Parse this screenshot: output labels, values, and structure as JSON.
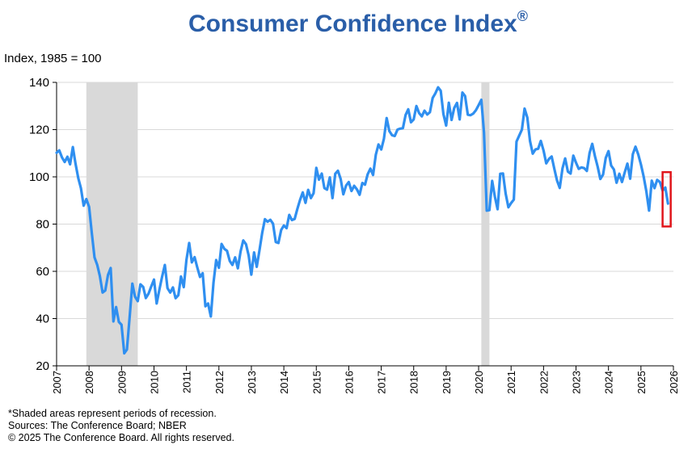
{
  "title": "Consumer Confidence Index",
  "title_mark": "®",
  "chart_data": {
    "type": "line",
    "ylabel": "Index, 1985 = 100",
    "xlabel": "",
    "ylim": [
      20,
      140
    ],
    "yticks": [
      20,
      40,
      60,
      80,
      100,
      120,
      140
    ],
    "xlim": [
      2007,
      2026
    ],
    "xticks": [
      "2007",
      "2008",
      "2009",
      "2010",
      "2011",
      "2012",
      "2013",
      "2014",
      "2015",
      "2016",
      "2017",
      "2018",
      "2019",
      "2020",
      "2021",
      "2022",
      "2023",
      "2024",
      "2025",
      "2026"
    ],
    "grid": "horizontal",
    "line_color": "#2f8ff0",
    "recession_color": "#d9d9d9",
    "highlight_color": "#e0151b",
    "recessions": [
      {
        "start": "2007-12",
        "end": "2009-06"
      },
      {
        "start": "2020-02",
        "end": "2020-04"
      }
    ],
    "highlight": {
      "start": "2025-09",
      "end": "2025-12",
      "ymin": 79,
      "ymax": 102
    },
    "series": [
      {
        "values": [
          [
            "2007-01",
            110.2
          ],
          [
            "2007-02",
            111.2
          ],
          [
            "2007-03",
            108.2
          ],
          [
            "2007-04",
            106.3
          ],
          [
            "2007-05",
            108.5
          ],
          [
            "2007-06",
            105.3
          ],
          [
            "2007-07",
            112.6
          ],
          [
            "2007-08",
            105.6
          ],
          [
            "2007-09",
            99.5
          ],
          [
            "2007-10",
            95.2
          ],
          [
            "2007-11",
            87.8
          ],
          [
            "2007-12",
            90.6
          ],
          [
            "2008-01",
            87.3
          ],
          [
            "2008-02",
            76.4
          ],
          [
            "2008-03",
            65.9
          ],
          [
            "2008-04",
            62.8
          ],
          [
            "2008-05",
            58.1
          ],
          [
            "2008-06",
            51.0
          ],
          [
            "2008-07",
            51.9
          ],
          [
            "2008-08",
            58.5
          ],
          [
            "2008-09",
            61.4
          ],
          [
            "2008-10",
            38.8
          ],
          [
            "2008-11",
            44.9
          ],
          [
            "2008-12",
            38.6
          ],
          [
            "2009-01",
            37.4
          ],
          [
            "2009-02",
            25.3
          ],
          [
            "2009-03",
            26.9
          ],
          [
            "2009-04",
            40.8
          ],
          [
            "2009-05",
            54.8
          ],
          [
            "2009-06",
            49.3
          ],
          [
            "2009-07",
            47.4
          ],
          [
            "2009-08",
            54.5
          ],
          [
            "2009-09",
            53.4
          ],
          [
            "2009-10",
            48.7
          ],
          [
            "2009-11",
            50.6
          ],
          [
            "2009-12",
            53.6
          ],
          [
            "2010-01",
            56.5
          ],
          [
            "2010-02",
            46.4
          ],
          [
            "2010-03",
            52.3
          ],
          [
            "2010-04",
            57.7
          ],
          [
            "2010-05",
            62.7
          ],
          [
            "2010-06",
            52.9
          ],
          [
            "2010-07",
            51.0
          ],
          [
            "2010-08",
            53.2
          ],
          [
            "2010-09",
            48.6
          ],
          [
            "2010-10",
            49.9
          ],
          [
            "2010-11",
            57.8
          ],
          [
            "2010-12",
            53.3
          ],
          [
            "2011-01",
            64.8
          ],
          [
            "2011-02",
            72.0
          ],
          [
            "2011-03",
            63.8
          ],
          [
            "2011-04",
            66.0
          ],
          [
            "2011-05",
            61.7
          ],
          [
            "2011-06",
            57.6
          ],
          [
            "2011-07",
            59.2
          ],
          [
            "2011-08",
            45.2
          ],
          [
            "2011-09",
            46.4
          ],
          [
            "2011-10",
            40.9
          ],
          [
            "2011-11",
            55.2
          ],
          [
            "2011-12",
            64.8
          ],
          [
            "2012-01",
            61.5
          ],
          [
            "2012-02",
            71.6
          ],
          [
            "2012-03",
            69.5
          ],
          [
            "2012-04",
            68.7
          ],
          [
            "2012-05",
            64.4
          ],
          [
            "2012-06",
            62.7
          ],
          [
            "2012-07",
            65.9
          ],
          [
            "2012-08",
            61.3
          ],
          [
            "2012-09",
            68.4
          ],
          [
            "2012-10",
            73.1
          ],
          [
            "2012-11",
            71.5
          ],
          [
            "2012-12",
            66.7
          ],
          [
            "2013-01",
            58.6
          ],
          [
            "2013-02",
            68.0
          ],
          [
            "2013-03",
            61.9
          ],
          [
            "2013-04",
            69.0
          ],
          [
            "2013-05",
            76.2
          ],
          [
            "2013-06",
            82.1
          ],
          [
            "2013-07",
            81.0
          ],
          [
            "2013-08",
            81.8
          ],
          [
            "2013-09",
            80.2
          ],
          [
            "2013-10",
            72.4
          ],
          [
            "2013-11",
            72.0
          ],
          [
            "2013-12",
            77.5
          ],
          [
            "2014-01",
            79.4
          ],
          [
            "2014-02",
            78.3
          ],
          [
            "2014-03",
            83.9
          ],
          [
            "2014-04",
            81.7
          ],
          [
            "2014-05",
            82.2
          ],
          [
            "2014-06",
            86.4
          ],
          [
            "2014-07",
            90.3
          ],
          [
            "2014-08",
            93.4
          ],
          [
            "2014-09",
            89.0
          ],
          [
            "2014-10",
            94.5
          ],
          [
            "2014-11",
            91.0
          ],
          [
            "2014-12",
            93.1
          ],
          [
            "2015-01",
            103.8
          ],
          [
            "2015-02",
            98.8
          ],
          [
            "2015-03",
            101.4
          ],
          [
            "2015-04",
            95.2
          ],
          [
            "2015-05",
            94.6
          ],
          [
            "2015-06",
            99.8
          ],
          [
            "2015-07",
            91.0
          ],
          [
            "2015-08",
            101.3
          ],
          [
            "2015-09",
            102.6
          ],
          [
            "2015-10",
            99.1
          ],
          [
            "2015-11",
            92.6
          ],
          [
            "2015-12",
            96.3
          ],
          [
            "2016-01",
            97.8
          ],
          [
            "2016-02",
            94.0
          ],
          [
            "2016-03",
            96.2
          ],
          [
            "2016-04",
            94.7
          ],
          [
            "2016-05",
            92.4
          ],
          [
            "2016-06",
            97.4
          ],
          [
            "2016-07",
            96.7
          ],
          [
            "2016-08",
            101.1
          ],
          [
            "2016-09",
            103.5
          ],
          [
            "2016-10",
            100.8
          ],
          [
            "2016-11",
            109.4
          ],
          [
            "2016-12",
            113.7
          ],
          [
            "2017-01",
            111.6
          ],
          [
            "2017-02",
            116.1
          ],
          [
            "2017-03",
            124.9
          ],
          [
            "2017-04",
            119.4
          ],
          [
            "2017-05",
            117.6
          ],
          [
            "2017-06",
            117.3
          ],
          [
            "2017-07",
            120.0
          ],
          [
            "2017-08",
            120.4
          ],
          [
            "2017-09",
            120.6
          ],
          [
            "2017-10",
            126.2
          ],
          [
            "2017-11",
            128.6
          ],
          [
            "2017-12",
            123.1
          ],
          [
            "2018-01",
            124.3
          ],
          [
            "2018-02",
            130.0
          ],
          [
            "2018-03",
            127.0
          ],
          [
            "2018-04",
            125.6
          ],
          [
            "2018-05",
            128.0
          ],
          [
            "2018-06",
            126.4
          ],
          [
            "2018-07",
            127.4
          ],
          [
            "2018-08",
            133.4
          ],
          [
            "2018-09",
            135.3
          ],
          [
            "2018-10",
            137.9
          ],
          [
            "2018-11",
            136.4
          ],
          [
            "2018-12",
            126.6
          ],
          [
            "2019-01",
            121.7
          ],
          [
            "2019-02",
            131.4
          ],
          [
            "2019-03",
            124.1
          ],
          [
            "2019-04",
            129.2
          ],
          [
            "2019-05",
            131.3
          ],
          [
            "2019-06",
            124.3
          ],
          [
            "2019-07",
            135.7
          ],
          [
            "2019-08",
            134.2
          ],
          [
            "2019-09",
            126.3
          ],
          [
            "2019-10",
            126.1
          ],
          [
            "2019-11",
            126.8
          ],
          [
            "2019-12",
            128.2
          ],
          [
            "2020-01",
            130.4
          ],
          [
            "2020-02",
            132.6
          ],
          [
            "2020-03",
            118.8
          ],
          [
            "2020-04",
            85.7
          ],
          [
            "2020-05",
            85.9
          ],
          [
            "2020-06",
            98.3
          ],
          [
            "2020-07",
            91.7
          ],
          [
            "2020-08",
            86.3
          ],
          [
            "2020-09",
            101.3
          ],
          [
            "2020-10",
            101.4
          ],
          [
            "2020-11",
            92.9
          ],
          [
            "2020-12",
            87.1
          ],
          [
            "2021-01",
            88.9
          ],
          [
            "2021-02",
            90.4
          ],
          [
            "2021-03",
            114.9
          ],
          [
            "2021-04",
            117.5
          ],
          [
            "2021-05",
            120.0
          ],
          [
            "2021-06",
            128.9
          ],
          [
            "2021-07",
            125.1
          ],
          [
            "2021-08",
            115.2
          ],
          [
            "2021-09",
            109.8
          ],
          [
            "2021-10",
            111.6
          ],
          [
            "2021-11",
            111.9
          ],
          [
            "2021-12",
            115.2
          ],
          [
            "2022-01",
            111.1
          ],
          [
            "2022-02",
            105.7
          ],
          [
            "2022-03",
            107.6
          ],
          [
            "2022-04",
            108.6
          ],
          [
            "2022-05",
            103.2
          ],
          [
            "2022-06",
            98.4
          ],
          [
            "2022-07",
            95.3
          ],
          [
            "2022-08",
            103.6
          ],
          [
            "2022-09",
            107.8
          ],
          [
            "2022-10",
            102.2
          ],
          [
            "2022-11",
            101.4
          ],
          [
            "2022-12",
            109.0
          ],
          [
            "2023-01",
            106.0
          ],
          [
            "2023-02",
            103.4
          ],
          [
            "2023-03",
            104.0
          ],
          [
            "2023-04",
            103.7
          ],
          [
            "2023-05",
            102.5
          ],
          [
            "2023-06",
            110.1
          ],
          [
            "2023-07",
            114.0
          ],
          [
            "2023-08",
            108.7
          ],
          [
            "2023-09",
            104.3
          ],
          [
            "2023-10",
            99.1
          ],
          [
            "2023-11",
            101.0
          ],
          [
            "2023-12",
            108.0
          ],
          [
            "2024-01",
            110.9
          ],
          [
            "2024-02",
            104.8
          ],
          [
            "2024-03",
            103.1
          ],
          [
            "2024-04",
            97.5
          ],
          [
            "2024-05",
            101.3
          ],
          [
            "2024-06",
            97.8
          ],
          [
            "2024-07",
            101.9
          ],
          [
            "2024-08",
            105.6
          ],
          [
            "2024-09",
            99.2
          ],
          [
            "2024-10",
            109.6
          ],
          [
            "2024-11",
            112.8
          ],
          [
            "2024-12",
            109.5
          ],
          [
            "2025-01",
            105.3
          ],
          [
            "2025-02",
            100.1
          ],
          [
            "2025-03",
            93.9
          ],
          [
            "2025-04",
            85.7
          ],
          [
            "2025-05",
            98.4
          ],
          [
            "2025-06",
            95.2
          ],
          [
            "2025-07",
            98.7
          ],
          [
            "2025-08",
            97.8
          ],
          [
            "2025-09",
            94.2
          ],
          [
            "2025-10",
            95.5
          ],
          [
            "2025-11",
            88.7
          ]
        ]
      }
    ]
  },
  "notes": [
    "*Shaded areas represent periods of recession.",
    "Sources:  The Conference Board;  NBER",
    "© 2025 The Conference Board. All rights reserved."
  ]
}
